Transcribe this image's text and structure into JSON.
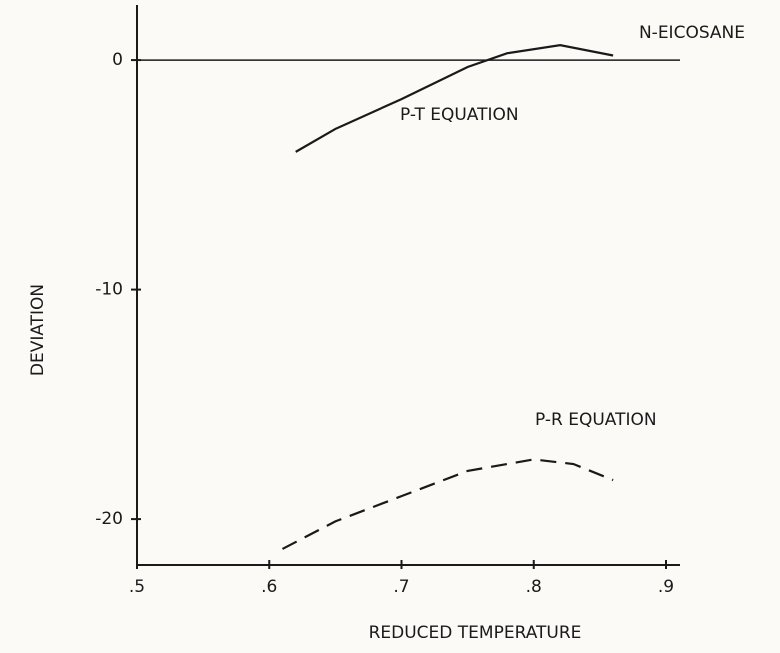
{
  "chart_data": {
    "type": "line",
    "xlabel": "REDUCED TEMPERATURE",
    "ylabel": "DEVIATION",
    "annotations": [
      "N-EICOSANE"
    ],
    "xlim": [
      0.5,
      0.9
    ],
    "ylim": [
      -22,
      2.4
    ],
    "xticks": [
      {
        "value": 0.5,
        "label": ".5"
      },
      {
        "value": 0.6,
        "label": ".6"
      },
      {
        "value": 0.7,
        "label": ".7"
      },
      {
        "value": 0.8,
        "label": ".8"
      },
      {
        "value": 0.9,
        "label": ".9"
      }
    ],
    "yticks": [
      0,
      -10,
      -20
    ],
    "reference_line": 0,
    "series": [
      {
        "name": "P-T EQUATION",
        "color": "#1a1a1a",
        "dashed": false,
        "x": [
          0.62,
          0.65,
          0.7,
          0.75,
          0.78,
          0.82,
          0.86
        ],
        "values": [
          -4.0,
          -3.0,
          -1.7,
          -0.3,
          0.3,
          0.65,
          0.2
        ]
      },
      {
        "name": "P-R EQUATION",
        "color": "#1a1a1a",
        "dashed": true,
        "x": [
          0.61,
          0.65,
          0.7,
          0.75,
          0.8,
          0.83,
          0.86
        ],
        "values": [
          -21.3,
          -20.1,
          -19.0,
          -17.9,
          -17.4,
          -17.6,
          -18.3
        ]
      }
    ]
  }
}
